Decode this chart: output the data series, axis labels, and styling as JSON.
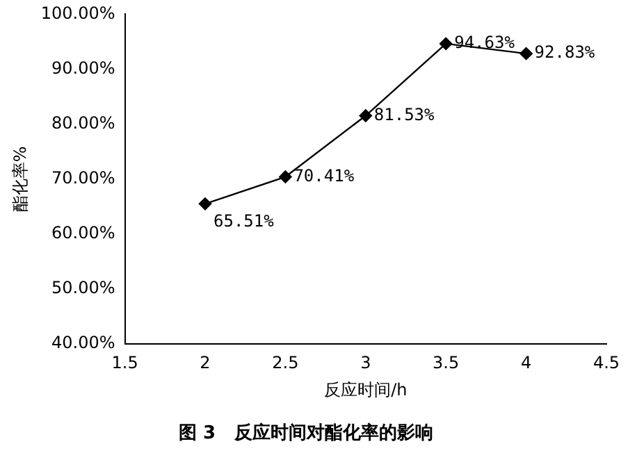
{
  "chart_data": {
    "type": "line",
    "title": "图 3   反应时间对酯化率的影响",
    "xlabel": "反应时间/h",
    "ylabel": "酯化率%",
    "x": [
      2,
      2.5,
      3,
      3.5,
      4
    ],
    "series": [
      {
        "color": "#000000",
        "values": [
          65.51,
          70.41,
          81.53,
          94.63,
          92.83
        ],
        "value_labels": [
          "65.51%",
          "70.41%",
          "81.53%",
          "94.63%",
          "92.83%"
        ]
      }
    ],
    "xlim": [
      1.5,
      4.5
    ],
    "xticks": [
      1.5,
      2,
      2.5,
      3,
      3.5,
      4,
      4.5
    ],
    "ylim": [
      40,
      100
    ],
    "yticks": [
      {
        "value": 40,
        "label": "40.00%"
      },
      {
        "value": 50,
        "label": "50.00%"
      },
      {
        "value": 60,
        "label": "60.00%"
      },
      {
        "value": 70,
        "label": "70.00%"
      },
      {
        "value": 80,
        "label": "80.00%"
      },
      {
        "value": 90,
        "label": "90.00%"
      },
      {
        "value": 100,
        "label": "100.00%"
      }
    ],
    "grid": false,
    "legend": false,
    "marker": "diamond",
    "line_style": "solid"
  }
}
